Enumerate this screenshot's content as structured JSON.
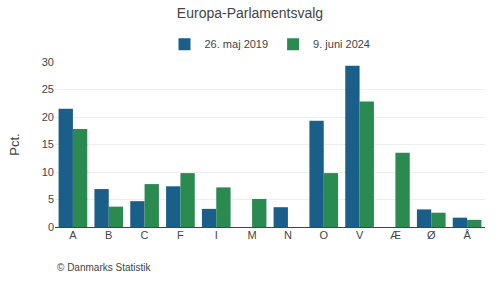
{
  "chart_data": {
    "type": "bar",
    "title": "Europa-Parlamentsvalg",
    "categories": [
      "A",
      "B",
      "C",
      "F",
      "I",
      "M",
      "N",
      "O",
      "V",
      "Æ",
      "Ø",
      "Å"
    ],
    "series": [
      {
        "name": "26. maj 2019",
        "color": "#1a5f8a",
        "values": [
          21.5,
          6.9,
          4.7,
          7.4,
          3.3,
          0.0,
          3.6,
          19.3,
          29.3,
          0.0,
          3.2,
          1.7
        ]
      },
      {
        "name": "9. juni 2024",
        "color": "#2a8a50",
        "values": [
          17.8,
          3.7,
          7.8,
          9.8,
          7.2,
          5.1,
          0.0,
          9.8,
          22.8,
          13.5,
          2.6,
          1.3
        ]
      }
    ],
    "ylabel": "Pct.",
    "ylim": [
      0,
      30
    ],
    "yticks": [
      0,
      5,
      10,
      15,
      20,
      25,
      30
    ],
    "grid": true,
    "legend": "top",
    "annotations": [
      "© Danmarks Statistik"
    ]
  }
}
